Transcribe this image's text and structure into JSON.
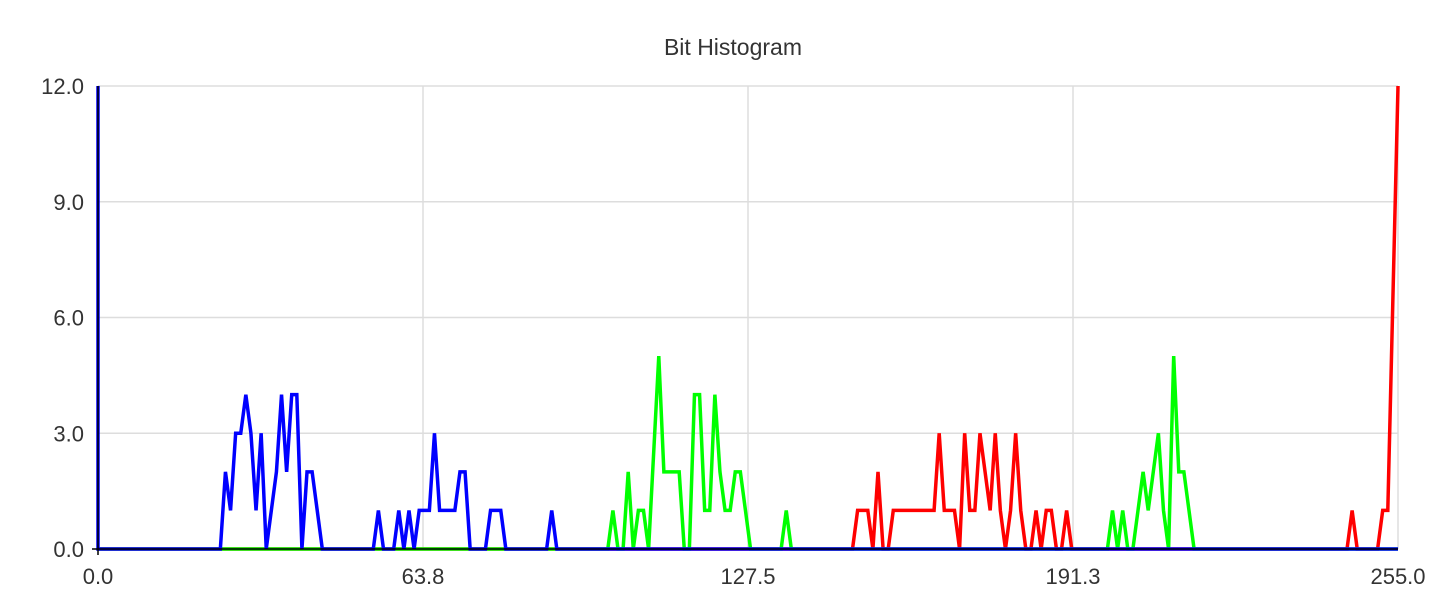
{
  "chart_data": {
    "type": "line",
    "title": "Bit Histogram",
    "xlabel": "",
    "ylabel": "",
    "xlim": [
      0,
      255
    ],
    "ylim": [
      0,
      12
    ],
    "x_ticks": [
      "0.0",
      "63.8",
      "127.5",
      "191.3",
      "255.0"
    ],
    "y_ticks": [
      "0.0",
      "3.0",
      "6.0",
      "9.0",
      "12.0"
    ],
    "grid": true,
    "legend": "none",
    "series": [
      {
        "color": "#ff0000",
        "points": [
          [
            0,
            0
          ],
          [
            148,
            0
          ],
          [
            149,
            1
          ],
          [
            150,
            1
          ],
          [
            151,
            1
          ],
          [
            152,
            0
          ],
          [
            153,
            2
          ],
          [
            154,
            0
          ],
          [
            155,
            0
          ],
          [
            156,
            1
          ],
          [
            157,
            1
          ],
          [
            158,
            1
          ],
          [
            159,
            1
          ],
          [
            160,
            1
          ],
          [
            161,
            1
          ],
          [
            162,
            1
          ],
          [
            163,
            1
          ],
          [
            164,
            1
          ],
          [
            165,
            3
          ],
          [
            166,
            1
          ],
          [
            167,
            1
          ],
          [
            168,
            1
          ],
          [
            169,
            0
          ],
          [
            170,
            3
          ],
          [
            171,
            1
          ],
          [
            172,
            1
          ],
          [
            173,
            3
          ],
          [
            174,
            2
          ],
          [
            175,
            1
          ],
          [
            176,
            3
          ],
          [
            177,
            1
          ],
          [
            178,
            0
          ],
          [
            179,
            1
          ],
          [
            180,
            3
          ],
          [
            181,
            1
          ],
          [
            182,
            0
          ],
          [
            183,
            0
          ],
          [
            184,
            1
          ],
          [
            185,
            0
          ],
          [
            186,
            1
          ],
          [
            187,
            1
          ],
          [
            188,
            0
          ],
          [
            189,
            0
          ],
          [
            190,
            1
          ],
          [
            191,
            0
          ],
          [
            245,
            0
          ],
          [
            246,
            1
          ],
          [
            247,
            0
          ],
          [
            251,
            0
          ],
          [
            252,
            1
          ],
          [
            253,
            1
          ],
          [
            255,
            12
          ]
        ]
      },
      {
        "color": "#00ff00",
        "points": [
          [
            0,
            0
          ],
          [
            100,
            0
          ],
          [
            101,
            1
          ],
          [
            102,
            0
          ],
          [
            103,
            0
          ],
          [
            104,
            2
          ],
          [
            105,
            0
          ],
          [
            106,
            1
          ],
          [
            107,
            1
          ],
          [
            108,
            0
          ],
          [
            110,
            5
          ],
          [
            111,
            2
          ],
          [
            112,
            2
          ],
          [
            113,
            2
          ],
          [
            114,
            2
          ],
          [
            115,
            0
          ],
          [
            116,
            0
          ],
          [
            117,
            4
          ],
          [
            118,
            4
          ],
          [
            119,
            1
          ],
          [
            120,
            1
          ],
          [
            121,
            4
          ],
          [
            122,
            2
          ],
          [
            123,
            1
          ],
          [
            124,
            1
          ],
          [
            125,
            2
          ],
          [
            126,
            2
          ],
          [
            127,
            1
          ],
          [
            128,
            0
          ],
          [
            134,
            0
          ],
          [
            135,
            1
          ],
          [
            136,
            0
          ],
          [
            198,
            0
          ],
          [
            199,
            1
          ],
          [
            200,
            0
          ],
          [
            201,
            1
          ],
          [
            202,
            0
          ],
          [
            203,
            0
          ],
          [
            204,
            1
          ],
          [
            205,
            2
          ],
          [
            206,
            1
          ],
          [
            207,
            2
          ],
          [
            208,
            3
          ],
          [
            209,
            1
          ],
          [
            210,
            0
          ],
          [
            211,
            5
          ],
          [
            212,
            2
          ],
          [
            213,
            2
          ],
          [
            215,
            0
          ],
          [
            255,
            0
          ]
        ]
      },
      {
        "color": "#0000ff",
        "points": [
          [
            0,
            12
          ],
          [
            0,
            0
          ],
          [
            24,
            0
          ],
          [
            25,
            2
          ],
          [
            26,
            1
          ],
          [
            27,
            3
          ],
          [
            28,
            3
          ],
          [
            29,
            4
          ],
          [
            30,
            3
          ],
          [
            31,
            1
          ],
          [
            32,
            3
          ],
          [
            33,
            0
          ],
          [
            35,
            2
          ],
          [
            36,
            4
          ],
          [
            37,
            2
          ],
          [
            38,
            4
          ],
          [
            39,
            4
          ],
          [
            40,
            0
          ],
          [
            41,
            2
          ],
          [
            42,
            2
          ],
          [
            44,
            0
          ],
          [
            54,
            0
          ],
          [
            55,
            1
          ],
          [
            56,
            0
          ],
          [
            58,
            0
          ],
          [
            59,
            1
          ],
          [
            60,
            0
          ],
          [
            61,
            1
          ],
          [
            62,
            0
          ],
          [
            63,
            1
          ],
          [
            64,
            1
          ],
          [
            65,
            1
          ],
          [
            66,
            3
          ],
          [
            67,
            1
          ],
          [
            68,
            1
          ],
          [
            69,
            1
          ],
          [
            70,
            1
          ],
          [
            71,
            2
          ],
          [
            72,
            2
          ],
          [
            73,
            0
          ],
          [
            76,
            0
          ],
          [
            77,
            1
          ],
          [
            78,
            1
          ],
          [
            79,
            1
          ],
          [
            80,
            0
          ],
          [
            88,
            0
          ],
          [
            89,
            1
          ],
          [
            90,
            0
          ],
          [
            255,
            0
          ]
        ]
      }
    ]
  }
}
